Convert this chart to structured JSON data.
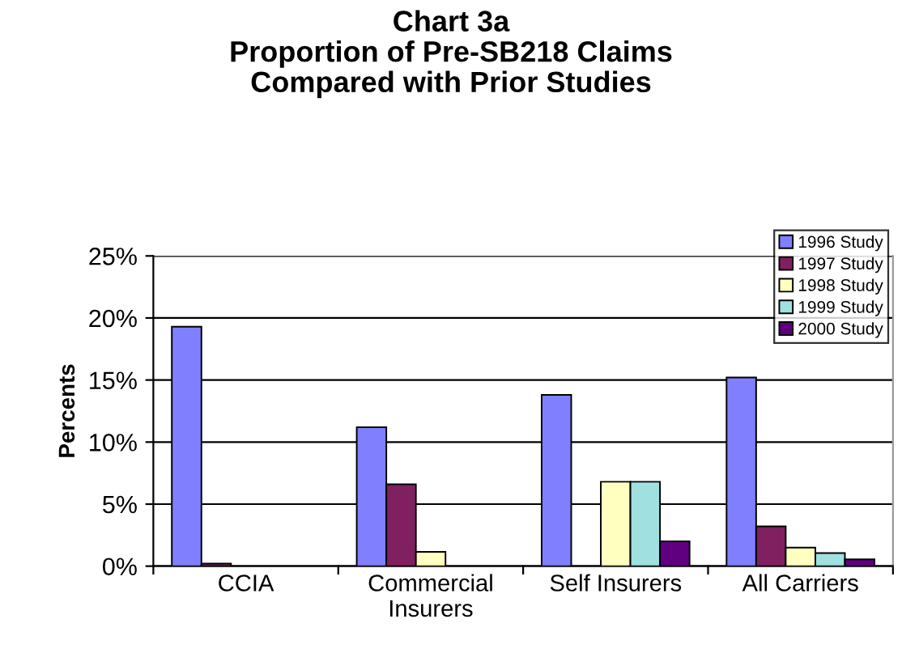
{
  "chart_data": {
    "type": "bar",
    "title": "Chart 3a\nProportion of Pre-SB218 Claims\nCompared with Prior Studies",
    "ylabel": "Percents",
    "categories": [
      "CCIA",
      "Commercial\nInsurers",
      "Self Insurers",
      "All Carriers"
    ],
    "series": [
      {
        "name": "1996 Study",
        "color": "#8080ff",
        "values": [
          19.3,
          11.2,
          13.8,
          15.2
        ]
      },
      {
        "name": "1997 Study",
        "color": "#802060",
        "values": [
          0.2,
          6.6,
          null,
          3.2
        ]
      },
      {
        "name": "1998 Study",
        "color": "#ffffc0",
        "values": [
          null,
          1.15,
          6.8,
          1.5
        ]
      },
      {
        "name": "1999 Study",
        "color": "#a0e0e0",
        "values": [
          null,
          null,
          6.8,
          1.05
        ]
      },
      {
        "name": "2000 Study",
        "color": "#600080",
        "values": [
          null,
          null,
          2.0,
          0.55
        ]
      }
    ],
    "ylim": [
      0,
      25
    ],
    "yticks": [
      {
        "value": 0,
        "label": "0%"
      },
      {
        "value": 5,
        "label": "5%"
      },
      {
        "value": 10,
        "label": "10%"
      },
      {
        "value": 15,
        "label": "15%"
      },
      {
        "value": 20,
        "label": "20%"
      },
      {
        "value": 25,
        "label": "25%"
      }
    ],
    "grid": "y",
    "legend": "top right"
  }
}
